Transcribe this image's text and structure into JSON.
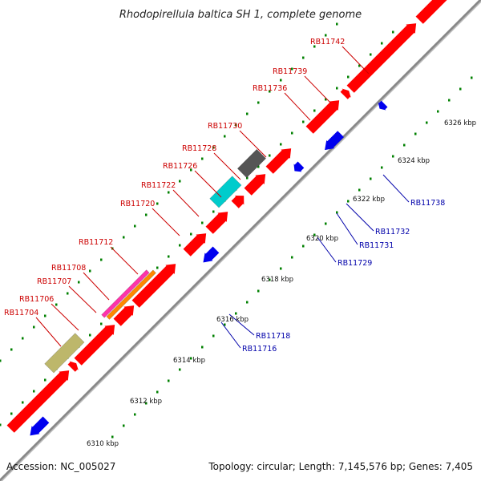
{
  "title": "Rhodopirellula baltica SH 1, complete genome",
  "footer": {
    "accession": "Accession: NC_005027",
    "summary": "Topology: circular; Length: 7,145,576 bp; Genes: 7,405"
  },
  "axis": {
    "unit": "kbp",
    "ticks": [
      "6310 kbp",
      "6312 kbp",
      "6314 kbp",
      "6316 kbp",
      "6318 kbp",
      "6320 kbp",
      "6322 kbp",
      "6324 kbp",
      "6326 kbp"
    ]
  },
  "colors": {
    "forward_gene": "#ff0000",
    "reverse_gene": "#0000ee",
    "forward_label": "#cc0000",
    "reverse_label": "#0000aa",
    "backbone": "#888888",
    "dots": "#008000",
    "magenta_feature": "#ff33aa",
    "orange_feature": "#ff8800",
    "khaki_feature": "#bdb76b",
    "cyan_feature": "#00cccc",
    "gray_feature": "#555555"
  },
  "forward_labels": [
    "RB11742",
    "RB11739",
    "RB11736",
    "RB11730",
    "RB11728",
    "RB11726",
    "RB11722",
    "RB11720",
    "RB11712",
    "RB11708",
    "RB11707",
    "RB11706",
    "RB11704"
  ],
  "reverse_labels": [
    "RB11738",
    "RB11732",
    "RB11731",
    "RB11729",
    "RB11718",
    "RB11716"
  ]
}
